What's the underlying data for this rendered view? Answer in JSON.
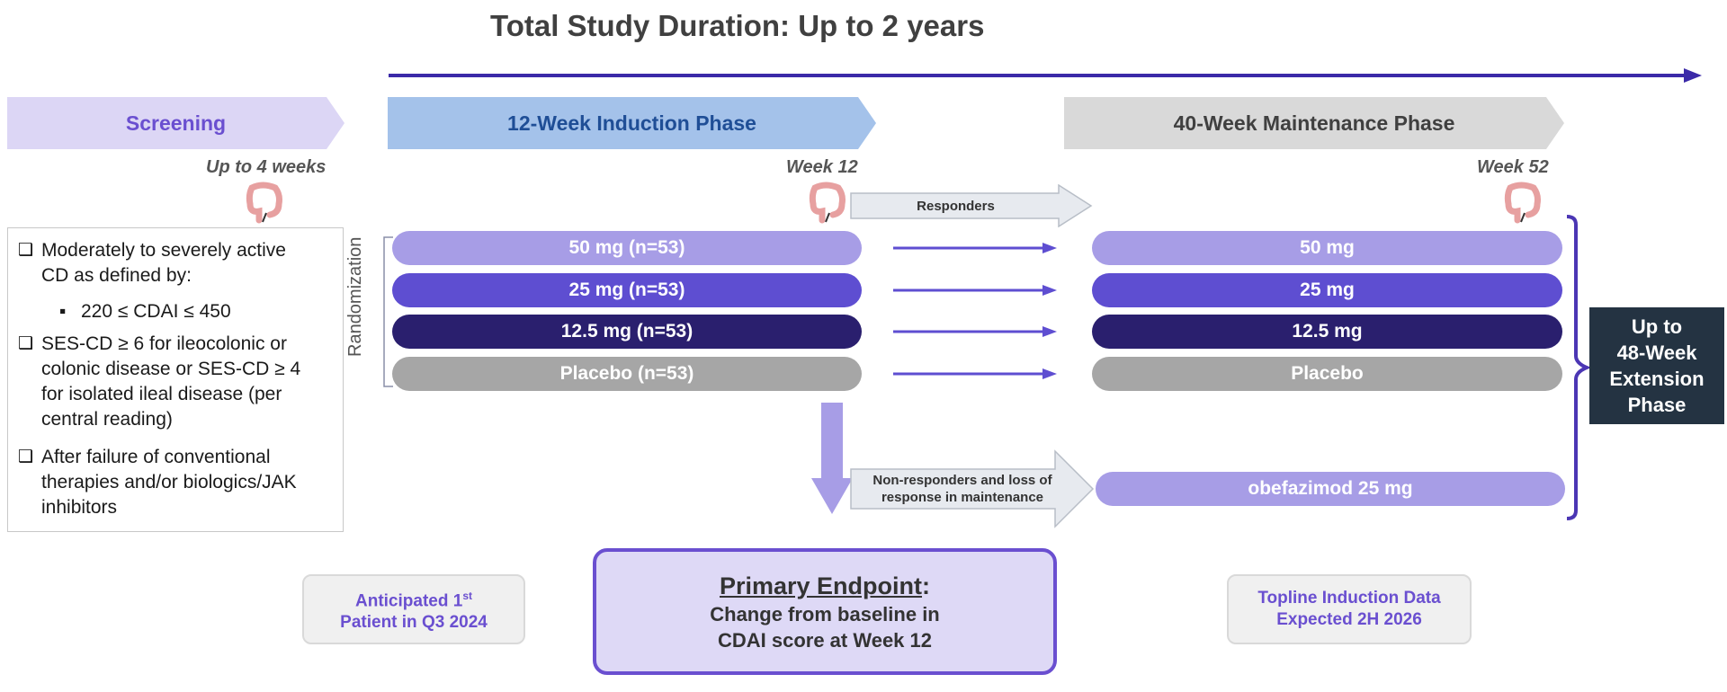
{
  "title": "Total Study Duration: Up to 2 years",
  "phases": {
    "screening": "Screening",
    "induction": "12-Week Induction Phase",
    "maintenance": "40-Week Maintenance Phase"
  },
  "timepoints": {
    "screening": "Up to 4 weeks",
    "week12": "Week 12",
    "week52": "Week 52"
  },
  "randomization_label": "Randomization",
  "induction_arms": [
    "50 mg (n=53)",
    "25 mg (n=53)",
    "12.5 mg (n=53)",
    "Placebo (n=53)"
  ],
  "maintenance_arms": [
    "50 mg",
    "25 mg",
    "12.5 mg",
    "Placebo"
  ],
  "responders_label": "Responders",
  "nonresponders_label": [
    "Non-responders and loss of",
    "response in maintenance"
  ],
  "rescue_arm": "obefazimod 25 mg",
  "extension": [
    "Up to",
    "48-Week",
    "Extension",
    "Phase"
  ],
  "criteria": {
    "c1": [
      "Moderately to severely active",
      "CD as defined by:"
    ],
    "c1_sub": "220 ≤ CDAI ≤ 450",
    "c2": [
      "SES-CD ≥ 6 for ileocolonic or",
      "colonic disease or SES-CD ≥ 4",
      "for isolated ileal disease (per",
      "central reading)"
    ],
    "c3": [
      "After failure of conventional",
      "therapies and/or biologics/JAK",
      "inhibitors"
    ]
  },
  "milestones": {
    "first_patient": {
      "line1": "Anticipated 1",
      "sup": "st",
      "line2": "Patient in Q3 2024"
    },
    "topline": [
      "Topline Induction Data",
      "Expected 2H 2026"
    ]
  },
  "primary_endpoint": {
    "heading": "Primary Endpoint",
    "colon": ":",
    "lines": [
      "Change from baseline in",
      "CDAI score at Week 12"
    ]
  },
  "colors": {
    "arm_50": "#a79de6",
    "arm_25": "#5e4ed1",
    "arm_12_5": "#2a1f6e",
    "placebo": "#a6a6a6",
    "accent": "#4b36b4",
    "extension_bg": "#243342"
  },
  "icons": [
    "colon-icon",
    "checkbox-icon",
    "bullet-icon",
    "arrow-icon"
  ]
}
